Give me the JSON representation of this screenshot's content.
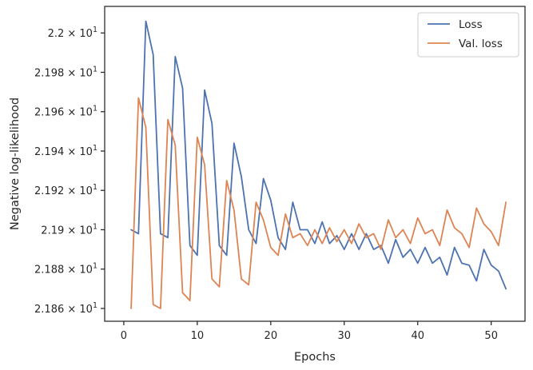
{
  "chart_data": {
    "type": "line",
    "xlabel": "Epochs",
    "ylabel": "Negative log-likelihood",
    "xlim": [
      -2.6,
      54.6
    ],
    "ylim": [
      21.8535,
      22.0135
    ],
    "x_ticks": [
      0,
      10,
      20,
      30,
      40,
      50
    ],
    "y_ticks": [
      {
        "value": 21.86,
        "mantissa": "2.186",
        "base": "10",
        "exponent": "1"
      },
      {
        "value": 21.88,
        "mantissa": "2.188",
        "base": "10",
        "exponent": "1"
      },
      {
        "value": 21.9,
        "mantissa": "2.19",
        "base": "10",
        "exponent": "1"
      },
      {
        "value": 21.92,
        "mantissa": "2.192",
        "base": "10",
        "exponent": "1"
      },
      {
        "value": 21.94,
        "mantissa": "2.194",
        "base": "10",
        "exponent": "1"
      },
      {
        "value": 21.96,
        "mantissa": "2.196",
        "base": "10",
        "exponent": "1"
      },
      {
        "value": 21.98,
        "mantissa": "2.198",
        "base": "10",
        "exponent": "1"
      },
      {
        "value": 22.0,
        "mantissa": "2.2",
        "base": "10",
        "exponent": "1"
      }
    ],
    "grid": false,
    "legend_position": "top-right",
    "x": [
      1,
      2,
      3,
      4,
      5,
      6,
      7,
      8,
      9,
      10,
      11,
      12,
      13,
      14,
      15,
      16,
      17,
      18,
      19,
      20,
      21,
      22,
      23,
      24,
      25,
      26,
      27,
      28,
      29,
      30,
      31,
      32,
      33,
      34,
      35,
      36,
      37,
      38,
      39,
      40,
      41,
      42,
      43,
      44,
      45,
      46,
      47,
      48,
      49,
      50,
      51,
      52
    ],
    "series": [
      {
        "name": "Loss",
        "color": "#4c72b0",
        "values": [
          21.9,
          21.898,
          22.006,
          21.989,
          21.898,
          21.896,
          21.988,
          21.972,
          21.892,
          21.887,
          21.971,
          21.954,
          21.892,
          21.887,
          21.944,
          21.927,
          21.9,
          21.893,
          21.926,
          21.915,
          21.896,
          21.89,
          21.914,
          21.9,
          21.9,
          21.893,
          21.904,
          21.893,
          21.897,
          21.89,
          21.898,
          21.89,
          21.898,
          21.89,
          21.892,
          21.883,
          21.895,
          21.886,
          21.89,
          21.883,
          21.891,
          21.883,
          21.886,
          21.877,
          21.891,
          21.883,
          21.882,
          21.874,
          21.89,
          21.882,
          21.879,
          21.87
        ]
      },
      {
        "name": "Val. loss",
        "color": "#dd8452",
        "values": [
          21.86,
          21.967,
          21.952,
          21.862,
          21.86,
          21.956,
          21.943,
          21.868,
          21.864,
          21.947,
          21.933,
          21.875,
          21.871,
          21.925,
          21.91,
          21.875,
          21.872,
          21.914,
          21.905,
          21.891,
          21.887,
          21.908,
          21.896,
          21.898,
          21.892,
          21.9,
          21.893,
          21.901,
          21.894,
          21.9,
          21.893,
          21.903,
          21.896,
          21.898,
          21.89,
          21.905,
          21.896,
          21.9,
          21.893,
          21.906,
          21.898,
          21.9,
          21.892,
          21.91,
          21.901,
          21.898,
          21.891,
          21.911,
          21.903,
          21.899,
          21.892,
          21.914
        ]
      }
    ]
  }
}
